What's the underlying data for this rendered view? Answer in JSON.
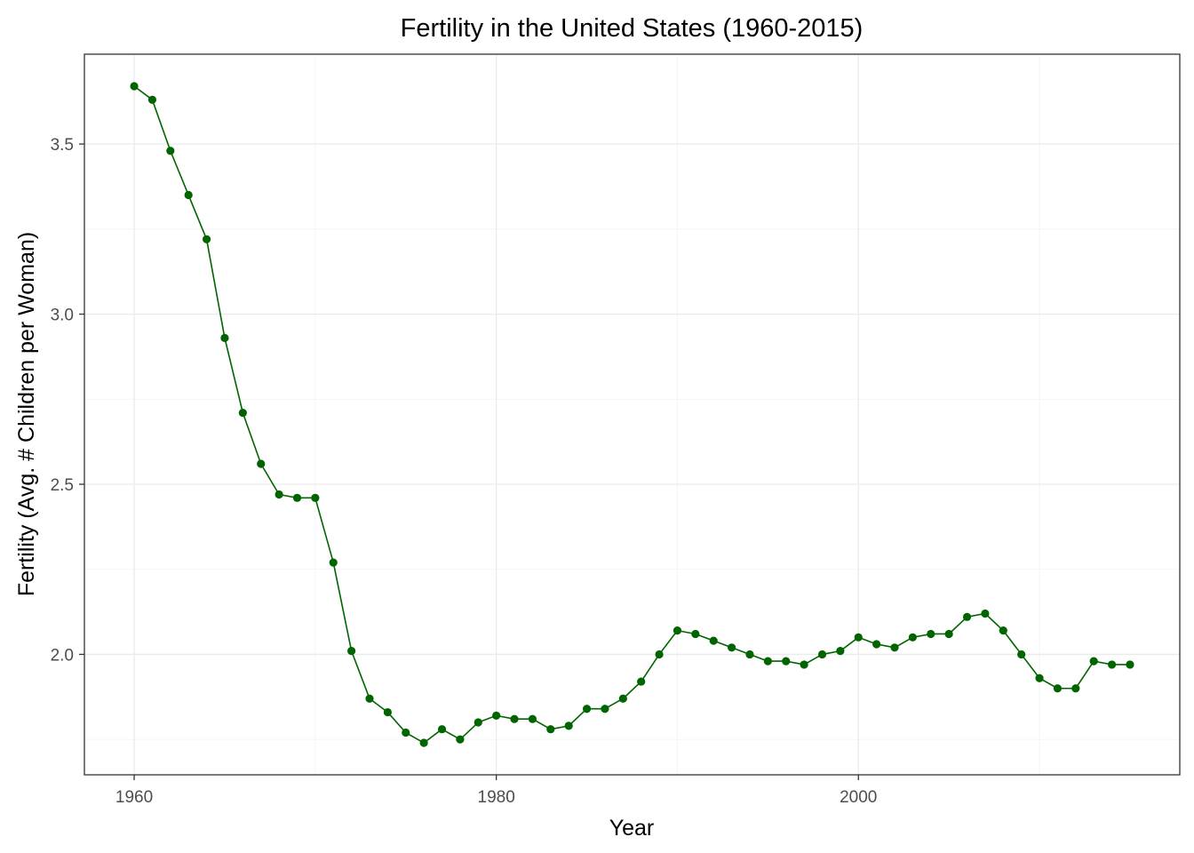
{
  "chart_data": {
    "type": "line",
    "title": "Fertility in the United States (1960-2015)",
    "xlabel": "Year",
    "ylabel": "Fertility (Avg. # Children per Woman)",
    "xlim": [
      1957.25,
      2017.75
    ],
    "ylim": [
      1.646,
      3.764
    ],
    "x_ticks": [
      1960,
      1980,
      2000
    ],
    "x_tick_labels": [
      "1960",
      "1980",
      "2000"
    ],
    "x_minor_ticks": [
      1970,
      1990,
      2010
    ],
    "y_ticks": [
      2.0,
      2.5,
      3.0,
      3.5
    ],
    "y_tick_labels": [
      "2.0",
      "2.5",
      "3.0",
      "3.5"
    ],
    "y_minor_ticks": [
      1.75,
      2.25,
      2.75,
      3.25
    ],
    "grid": true,
    "legend": "none",
    "series": [
      {
        "color": "#006400",
        "x": [
          1960,
          1961,
          1962,
          1963,
          1964,
          1965,
          1966,
          1967,
          1968,
          1969,
          1970,
          1971,
          1972,
          1973,
          1974,
          1975,
          1976,
          1977,
          1978,
          1979,
          1980,
          1981,
          1982,
          1983,
          1984,
          1985,
          1986,
          1987,
          1988,
          1989,
          1990,
          1991,
          1992,
          1993,
          1994,
          1995,
          1996,
          1997,
          1998,
          1999,
          2000,
          2001,
          2002,
          2003,
          2004,
          2005,
          2006,
          2007,
          2008,
          2009,
          2010,
          2011,
          2012,
          2013,
          2014,
          2015
        ],
        "y": [
          3.67,
          3.63,
          3.48,
          3.35,
          3.22,
          2.93,
          2.71,
          2.56,
          2.47,
          2.46,
          2.46,
          2.27,
          2.01,
          1.87,
          1.83,
          1.77,
          1.74,
          1.78,
          1.75,
          1.8,
          1.82,
          1.81,
          1.81,
          1.78,
          1.79,
          1.84,
          1.84,
          1.87,
          1.92,
          2.0,
          2.07,
          2.06,
          2.04,
          2.02,
          2.0,
          1.98,
          1.98,
          1.97,
          2.0,
          2.01,
          2.05,
          2.03,
          2.02,
          2.05,
          2.06,
          2.06,
          2.11,
          2.12,
          2.07,
          2.0,
          1.93,
          1.9,
          1.9,
          1.98,
          1.97,
          1.97
        ]
      }
    ]
  }
}
